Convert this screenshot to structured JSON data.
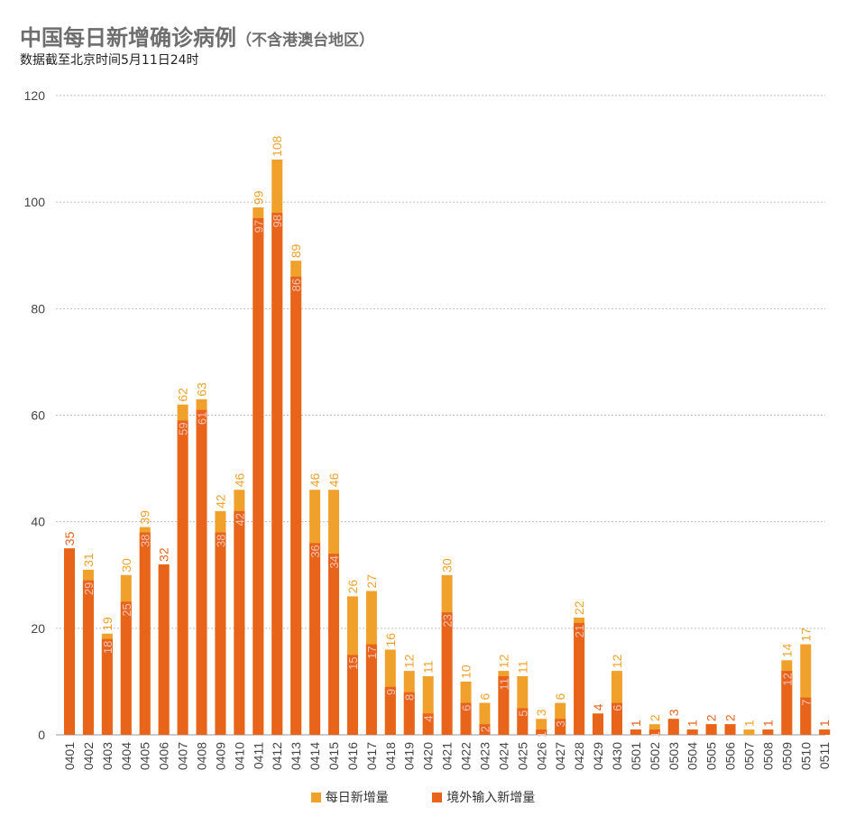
{
  "header": {
    "title": "中国每日新增确诊病例",
    "title_paren": "（不含港澳台地区）",
    "subtitle": "数据截至北京时间5月11日24时"
  },
  "legend": {
    "total_label": "每日新增量",
    "imported_label": "境外输入新增量"
  },
  "colors": {
    "total": "#f0a12c",
    "imported": "#e8641b",
    "grid": "#bdbdbd",
    "axis_text": "#444444"
  },
  "chart_data": {
    "type": "bar",
    "title": "中国每日新增确诊病例",
    "subtitle": "数据截至北京时间5月11日24时",
    "xlabel": "",
    "ylabel": "",
    "ylim": [
      0,
      120
    ],
    "yticks": [
      0,
      20,
      40,
      60,
      80,
      100,
      120
    ],
    "grid": true,
    "legend_position": "bottom-center",
    "categories": [
      "0401",
      "0402",
      "0403",
      "0404",
      "0405",
      "0406",
      "0407",
      "0408",
      "0409",
      "0410",
      "0411",
      "0412",
      "0413",
      "0414",
      "0415",
      "0416",
      "0417",
      "0418",
      "0419",
      "0420",
      "0421",
      "0422",
      "0423",
      "0424",
      "0425",
      "0426",
      "0427",
      "0428",
      "0429",
      "0430",
      "0501",
      "0502",
      "0503",
      "0504",
      "0505",
      "0506",
      "0507",
      "0508",
      "0509",
      "0510",
      "0511"
    ],
    "series": [
      {
        "name": "每日新增量",
        "values": [
          35,
          31,
          19,
          30,
          39,
          32,
          62,
          63,
          42,
          46,
          99,
          108,
          89,
          46,
          46,
          26,
          27,
          16,
          12,
          11,
          30,
          10,
          6,
          12,
          11,
          3,
          6,
          22,
          4,
          12,
          1,
          2,
          3,
          1,
          2,
          2,
          1,
          1,
          14,
          17,
          1
        ]
      },
      {
        "name": "境外输入新增量",
        "values": [
          35,
          29,
          18,
          25,
          38,
          32,
          59,
          61,
          38,
          42,
          97,
          98,
          86,
          36,
          34,
          15,
          17,
          9,
          8,
          4,
          23,
          6,
          2,
          11,
          5,
          1,
          3,
          21,
          4,
          6,
          1,
          1,
          3,
          1,
          2,
          2,
          0,
          1,
          12,
          7,
          1
        ]
      }
    ]
  }
}
